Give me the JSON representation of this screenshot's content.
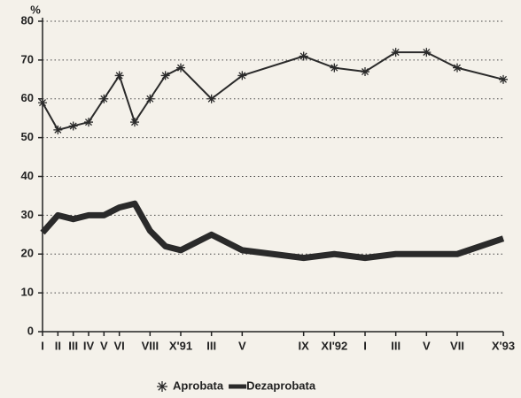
{
  "chart_data": {
    "type": "line",
    "y_label": "%",
    "xlim": [
      0,
      30
    ],
    "ylim": [
      0,
      80
    ],
    "yticks": [
      0,
      10,
      20,
      30,
      40,
      50,
      60,
      70,
      80
    ],
    "xticks": [
      {
        "value": 0,
        "label": "I"
      },
      {
        "value": 1,
        "label": "II"
      },
      {
        "value": 2,
        "label": "III"
      },
      {
        "value": 3,
        "label": "IV"
      },
      {
        "value": 4,
        "label": "V"
      },
      {
        "value": 5,
        "label": "VI"
      },
      {
        "value": 7,
        "label": "VIII"
      },
      {
        "value": 9,
        "label": "X'91"
      },
      {
        "value": 11,
        "label": "III"
      },
      {
        "value": 13,
        "label": "V"
      },
      {
        "value": 17,
        "label": "IX"
      },
      {
        "value": 19,
        "label": "XI'92"
      },
      {
        "value": 21,
        "label": "I"
      },
      {
        "value": 23,
        "label": "III"
      },
      {
        "value": 25,
        "label": "V"
      },
      {
        "value": 27,
        "label": "VII"
      },
      {
        "value": 30,
        "label": "X'93"
      }
    ],
    "grid": true,
    "legend": "bottom",
    "series": [
      {
        "name": "Aprobata",
        "color": "#2a2a2a",
        "marker": "asterisk",
        "line_width": 2,
        "x": [
          0,
          1,
          2,
          3,
          4,
          5,
          6,
          7,
          8,
          9,
          11,
          13,
          17,
          19,
          21,
          23,
          25,
          27,
          30
        ],
        "values": [
          59,
          52,
          53,
          54,
          60,
          66,
          54,
          60,
          66,
          68,
          60,
          66,
          71,
          68,
          67,
          72,
          72,
          68,
          65
        ]
      },
      {
        "name": "Dezaprobata",
        "color": "#2a2a2a",
        "marker": "none",
        "line_width": 7,
        "x": [
          0,
          1,
          2,
          3,
          4,
          5,
          6,
          7,
          8,
          9,
          11,
          13,
          15,
          17,
          19,
          21,
          23,
          25,
          27,
          30
        ],
        "values": [
          25.5,
          30,
          29,
          30,
          30,
          32,
          33,
          26,
          22,
          21,
          25,
          21,
          20,
          19,
          20,
          19,
          20,
          20,
          20,
          24
        ]
      }
    ]
  }
}
